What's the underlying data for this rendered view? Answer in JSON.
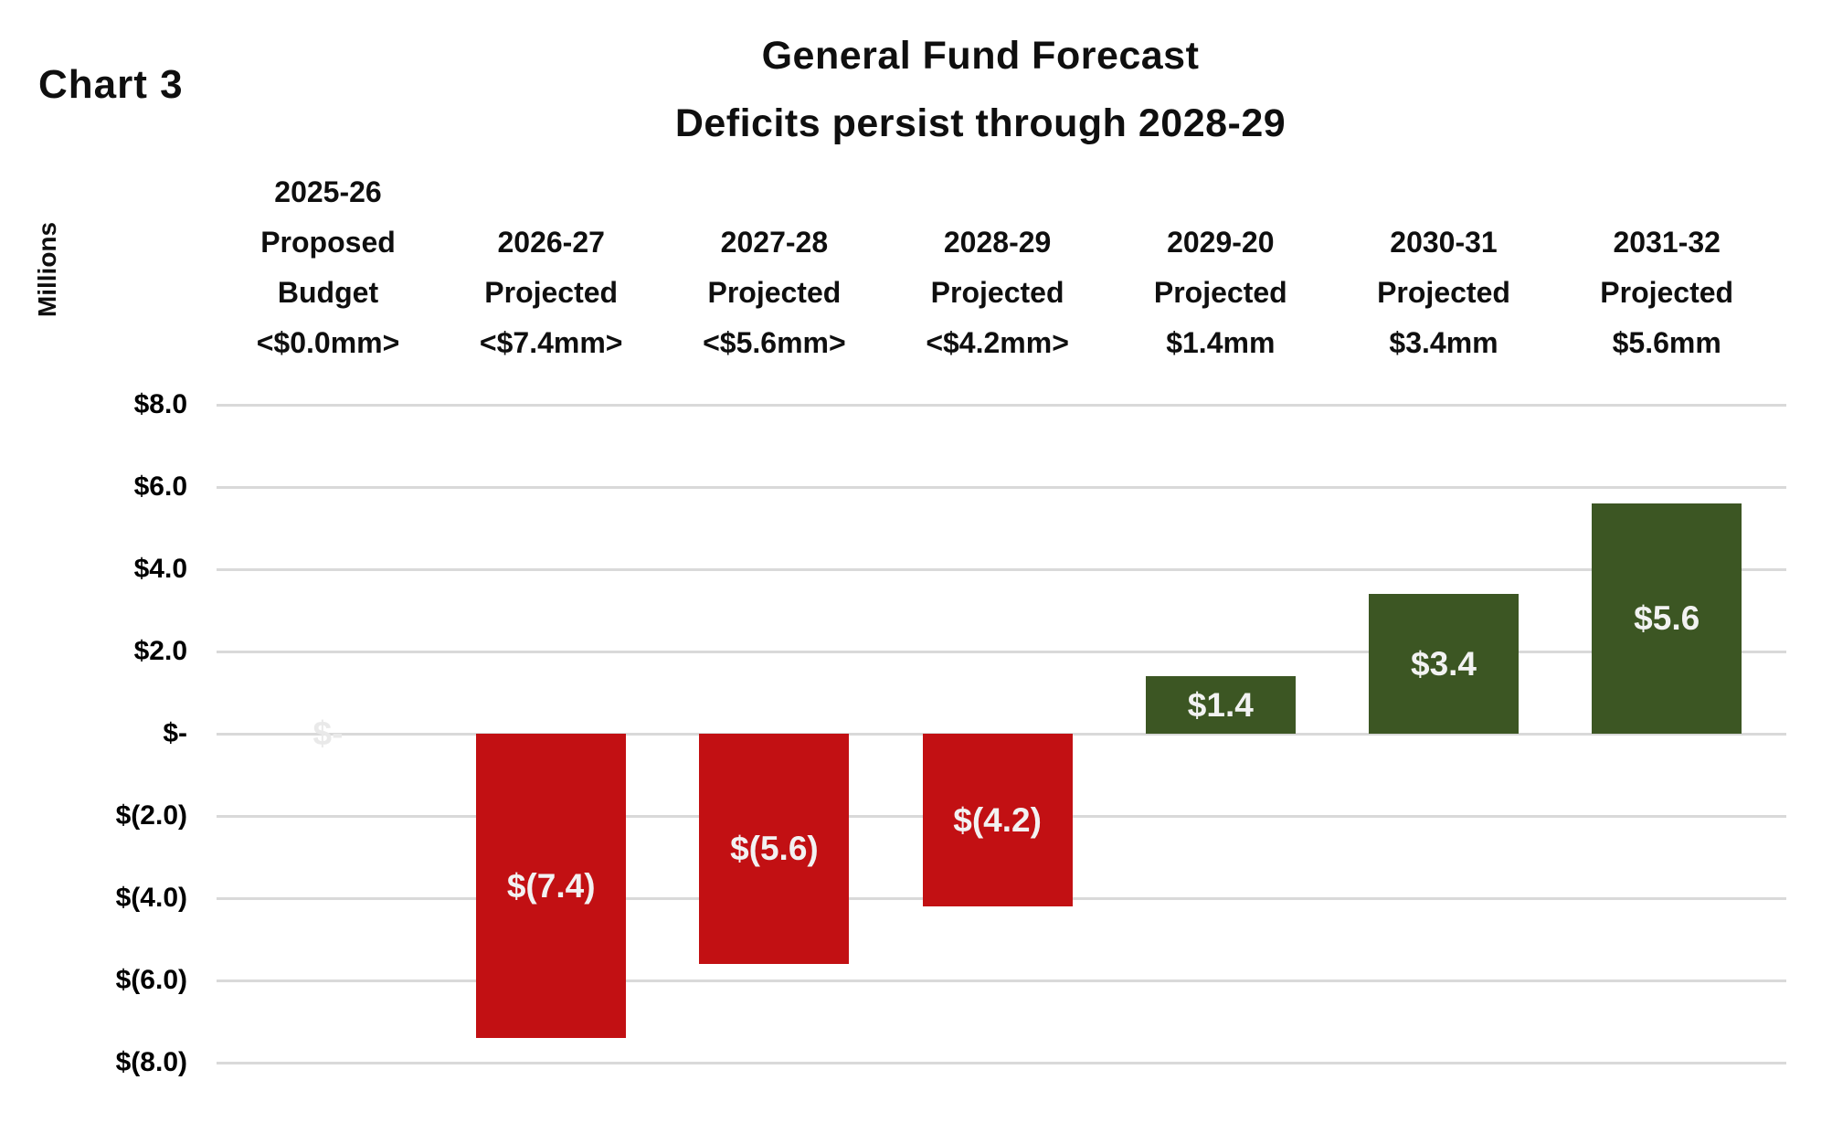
{
  "chart_label": "Chart 3",
  "title": {
    "line1": "General Fund Forecast",
    "line2": "Deficits persist through 2028-29"
  },
  "y_axis": {
    "title": "Millions",
    "ticks": [
      "$8.0",
      "$6.0",
      "$4.0",
      "$2.0",
      "$-",
      "$(2.0)",
      "$(4.0)",
      "$(6.0)",
      "$(8.0)"
    ]
  },
  "colors": {
    "positive_bar": "#3c5623",
    "negative_bar": "#c21013",
    "bar_label_text": "#f2f2f2",
    "zero_bar_label": "#e9e9e9",
    "gridline": "#d9d9d9",
    "text": "#0f0f0f",
    "background": "#ffffff"
  },
  "chart_data": {
    "type": "bar",
    "title": "General Fund Forecast",
    "subtitle": "Deficits persist through 2028-29",
    "ylabel": "Millions",
    "unit": "millions of dollars",
    "ylim": [
      -8,
      8
    ],
    "ytick_interval": 2,
    "grid": true,
    "legend": false,
    "categories": [
      "2025-26 Proposed Budget <$0.0mm>",
      "2026-27 Projected <$7.4mm>",
      "2027-28 Projected <$5.6mm>",
      "2028-29 Projected <$4.2mm>",
      "2029-20 Projected $1.4mm",
      "2030-31 Projected $3.4mm",
      "2031-32 Projected $5.6mm"
    ],
    "values": [
      0.0,
      -7.4,
      -5.6,
      -4.2,
      1.4,
      3.4,
      5.6
    ],
    "columns": [
      {
        "header_lines": [
          "2025-26",
          "Proposed",
          "Budget",
          "<$0.0mm>"
        ],
        "value": 0.0,
        "bar_label": "$-"
      },
      {
        "header_lines": [
          "2026-27",
          "Projected",
          "<$7.4mm>"
        ],
        "value": -7.4,
        "bar_label": "$(7.4)"
      },
      {
        "header_lines": [
          "2027-28",
          "Projected",
          "<$5.6mm>"
        ],
        "value": -5.6,
        "bar_label": "$(5.6)"
      },
      {
        "header_lines": [
          "2028-29",
          "Projected",
          "<$4.2mm>"
        ],
        "value": -4.2,
        "bar_label": "$(4.2)"
      },
      {
        "header_lines": [
          "2029-20",
          "Projected",
          "$1.4mm"
        ],
        "value": 1.4,
        "bar_label": "$1.4"
      },
      {
        "header_lines": [
          "2030-31",
          "Projected",
          "$3.4mm"
        ],
        "value": 3.4,
        "bar_label": "$3.4"
      },
      {
        "header_lines": [
          "2031-32",
          "Projected",
          "$5.6mm"
        ],
        "value": 5.6,
        "bar_label": "$5.6"
      }
    ]
  }
}
